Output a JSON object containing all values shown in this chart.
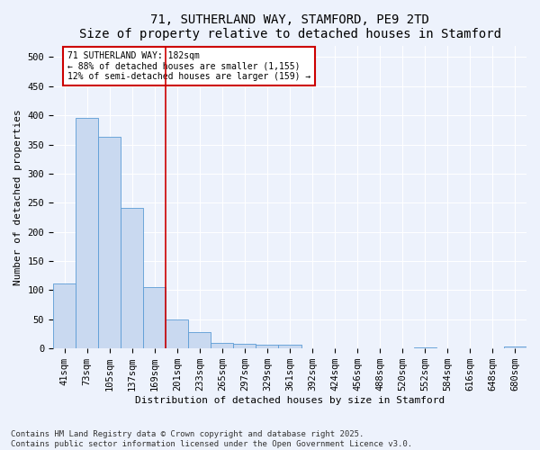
{
  "title1": "71, SUTHERLAND WAY, STAMFORD, PE9 2TD",
  "title2": "Size of property relative to detached houses in Stamford",
  "xlabel": "Distribution of detached houses by size in Stamford",
  "ylabel": "Number of detached properties",
  "categories": [
    "41sqm",
    "73sqm",
    "105sqm",
    "137sqm",
    "169sqm",
    "201sqm",
    "233sqm",
    "265sqm",
    "297sqm",
    "329sqm",
    "361sqm",
    "392sqm",
    "424sqm",
    "456sqm",
    "488sqm",
    "520sqm",
    "552sqm",
    "584sqm",
    "616sqm",
    "648sqm",
    "680sqm"
  ],
  "values": [
    111,
    396,
    363,
    242,
    105,
    50,
    28,
    10,
    8,
    6,
    7,
    0,
    1,
    0,
    0,
    0,
    2,
    0,
    0,
    0,
    3
  ],
  "bar_color": "#c9d9f0",
  "bar_edge_color": "#5b9bd5",
  "vline_x": 4.5,
  "vline_color": "#cc0000",
  "annotation_line1": "71 SUTHERLAND WAY: 182sqm",
  "annotation_line2": "← 88% of detached houses are smaller (1,155)",
  "annotation_line3": "12% of semi-detached houses are larger (159) →",
  "annotation_box_color": "#cc0000",
  "ylim": [
    0,
    520
  ],
  "yticks": [
    0,
    50,
    100,
    150,
    200,
    250,
    300,
    350,
    400,
    450,
    500
  ],
  "footer1": "Contains HM Land Registry data © Crown copyright and database right 2025.",
  "footer2": "Contains public sector information licensed under the Open Government Licence v3.0.",
  "bg_color": "#edf2fc",
  "grid_color": "#ffffff",
  "title_fontsize": 10,
  "axis_fontsize": 8,
  "tick_fontsize": 7.5,
  "annotation_fontsize": 7,
  "footer_fontsize": 6.5
}
